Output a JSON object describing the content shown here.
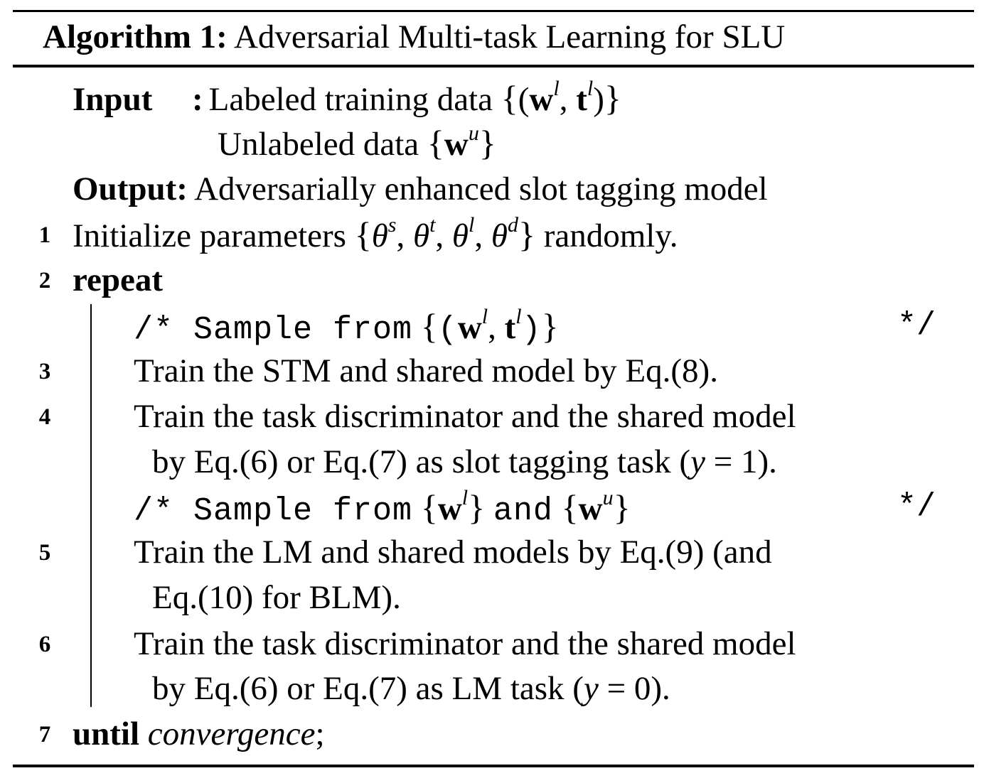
{
  "caption": {
    "label": "Algorithm 1:",
    "title": "Adversarial Multi-task Learning for SLU"
  },
  "input": {
    "label": "Input",
    "sep": ":",
    "line1": "Labeled training data",
    "line2": "Unlabeled data"
  },
  "output": {
    "label": "Output:",
    "text": "Adversarially enhanced slot tagging model"
  },
  "steps": {
    "s1": {
      "num": "1",
      "text": "Initialize parameters",
      "suffix": "randomly."
    },
    "s2": {
      "num": "2",
      "keyword": "repeat"
    },
    "c1": {
      "open": "/* Sample from",
      "close": "*/"
    },
    "s3": {
      "num": "3",
      "text": "Train the STM and shared model by Eq.(8)."
    },
    "s4": {
      "num": "4",
      "text": "Train the task discriminator and the shared model",
      "cont": "by Eq.(6) or Eq.(7) as slot tagging task (",
      "cont_end": ")."
    },
    "c2": {
      "open": "/* Sample from",
      "and": "and",
      "close": "*/"
    },
    "s5": {
      "num": "5",
      "text": "Train the LM and shared models by Eq.(9) (and",
      "cont": "Eq.(10) for BLM)."
    },
    "s6": {
      "num": "6",
      "text": "Train the task discriminator and the shared model",
      "cont": "by Eq.(6) or Eq.(7) as LM task (",
      "cont_end": ")."
    },
    "s7": {
      "num": "7",
      "keyword": "until",
      "cond": "convergence",
      "end": ";"
    }
  },
  "math": {
    "w": "w",
    "t": "t",
    "sup_l": "l",
    "sup_u": "u",
    "theta": "θ",
    "sup_s": "s",
    "sup_t": "t",
    "sup_d": "d",
    "y": "y",
    "eq": "=",
    "one": "1",
    "zero": "0"
  }
}
